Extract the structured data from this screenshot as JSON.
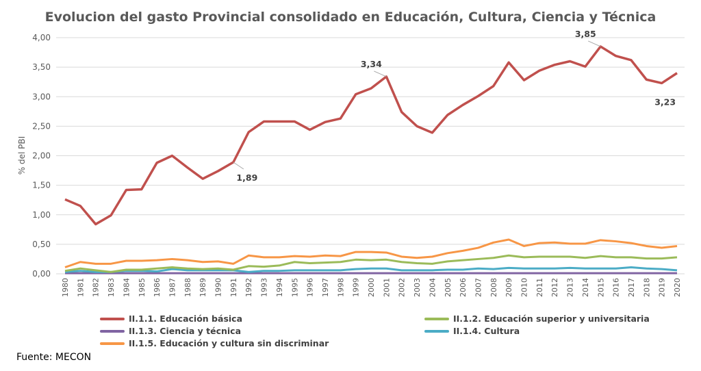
{
  "chart_data": {
    "type": "line",
    "title": "Evolucion del gasto Provincial consolidado en Educación, Cultura, Ciencia y Técnica",
    "ylabel": "% del PBI",
    "xlabel": "",
    "ylim": [
      0,
      4
    ],
    "yticks": [
      "0,00",
      "0,50",
      "1,00",
      "1,50",
      "2,00",
      "2,50",
      "3,00",
      "3,50",
      "4,00"
    ],
    "grid": true,
    "legend_position": "bottom",
    "x": [
      "1980",
      "1981",
      "1982",
      "1983",
      "1984",
      "1985",
      "1986",
      "1987",
      "1988",
      "1989",
      "1990",
      "1991",
      "1992",
      "1993",
      "1994",
      "1995",
      "1996",
      "1997",
      "1998",
      "1999",
      "2000",
      "2001",
      "2002",
      "2003",
      "2004",
      "2005",
      "2006",
      "2007",
      "2008",
      "2009",
      "2010",
      "2011",
      "2012",
      "2013",
      "2014",
      "2015",
      "2016",
      "2017",
      "2018",
      "2019",
      "2020"
    ],
    "series": [
      {
        "name": "II.1.1. Educación básica",
        "color": "#c0504d",
        "values": [
          1.26,
          1.15,
          0.84,
          0.99,
          1.42,
          1.43,
          1.88,
          2.0,
          1.8,
          1.61,
          1.74,
          1.89,
          2.4,
          2.58,
          2.58,
          2.58,
          2.44,
          2.57,
          2.63,
          3.04,
          3.14,
          3.34,
          2.74,
          2.5,
          2.39,
          2.69,
          2.86,
          3.01,
          3.18,
          3.58,
          3.28,
          3.44,
          3.54,
          3.6,
          3.51,
          3.85,
          3.69,
          3.62,
          3.29,
          3.23,
          3.4
        ]
      },
      {
        "name": "II.1.2. Educación superior y universitaria",
        "color": "#9bbb59",
        "values": [
          0.05,
          0.09,
          0.06,
          0.03,
          0.07,
          0.07,
          0.09,
          0.11,
          0.09,
          0.08,
          0.09,
          0.07,
          0.13,
          0.12,
          0.14,
          0.2,
          0.18,
          0.19,
          0.2,
          0.24,
          0.23,
          0.24,
          0.2,
          0.18,
          0.17,
          0.21,
          0.23,
          0.25,
          0.27,
          0.31,
          0.28,
          0.29,
          0.29,
          0.29,
          0.27,
          0.3,
          0.28,
          0.28,
          0.26,
          0.26,
          0.28
        ]
      },
      {
        "name": "II.1.3. Ciencia y técnica",
        "color": "#8064a2",
        "values": [
          0.01,
          0.01,
          0.01,
          0.01,
          0.01,
          0.01,
          0.01,
          0.01,
          0.01,
          0.01,
          0.01,
          0.01,
          0.01,
          0.01,
          0.01,
          0.01,
          0.01,
          0.01,
          0.01,
          0.01,
          0.01,
          0.01,
          0.01,
          0.01,
          0.01,
          0.01,
          0.01,
          0.01,
          0.01,
          0.01,
          0.01,
          0.01,
          0.01,
          0.01,
          0.01,
          0.01,
          0.01,
          0.01,
          0.01,
          0.01,
          0.01
        ]
      },
      {
        "name": "II.1.4. Cultura",
        "color": "#4bacc6",
        "values": [
          0.03,
          0.05,
          0.03,
          0.03,
          0.05,
          0.05,
          0.04,
          0.08,
          0.06,
          0.06,
          0.06,
          0.06,
          0.03,
          0.05,
          0.05,
          0.06,
          0.06,
          0.06,
          0.06,
          0.08,
          0.09,
          0.09,
          0.06,
          0.06,
          0.06,
          0.07,
          0.07,
          0.09,
          0.08,
          0.1,
          0.09,
          0.09,
          0.09,
          0.1,
          0.09,
          0.09,
          0.09,
          0.11,
          0.09,
          0.08,
          0.06
        ]
      },
      {
        "name": "II.1.5. Educación y cultura sin discriminar",
        "color": "#f79646",
        "values": [
          0.11,
          0.2,
          0.17,
          0.17,
          0.22,
          0.22,
          0.23,
          0.25,
          0.23,
          0.2,
          0.21,
          0.17,
          0.31,
          0.28,
          0.28,
          0.3,
          0.29,
          0.31,
          0.3,
          0.37,
          0.37,
          0.36,
          0.29,
          0.27,
          0.29,
          0.35,
          0.39,
          0.44,
          0.53,
          0.58,
          0.47,
          0.52,
          0.53,
          0.51,
          0.51,
          0.57,
          0.55,
          0.52,
          0.47,
          0.44,
          0.47
        ]
      }
    ],
    "annotations": [
      {
        "x": "1991",
        "label": "1,89",
        "position": "below-right"
      },
      {
        "x": "2001",
        "label": "3,34",
        "position": "above-left"
      },
      {
        "x": "2015",
        "label": "3,85",
        "position": "above-left"
      },
      {
        "x": "2019",
        "label": "3,23",
        "position": "below"
      }
    ]
  },
  "source": "Fuente: MECON"
}
